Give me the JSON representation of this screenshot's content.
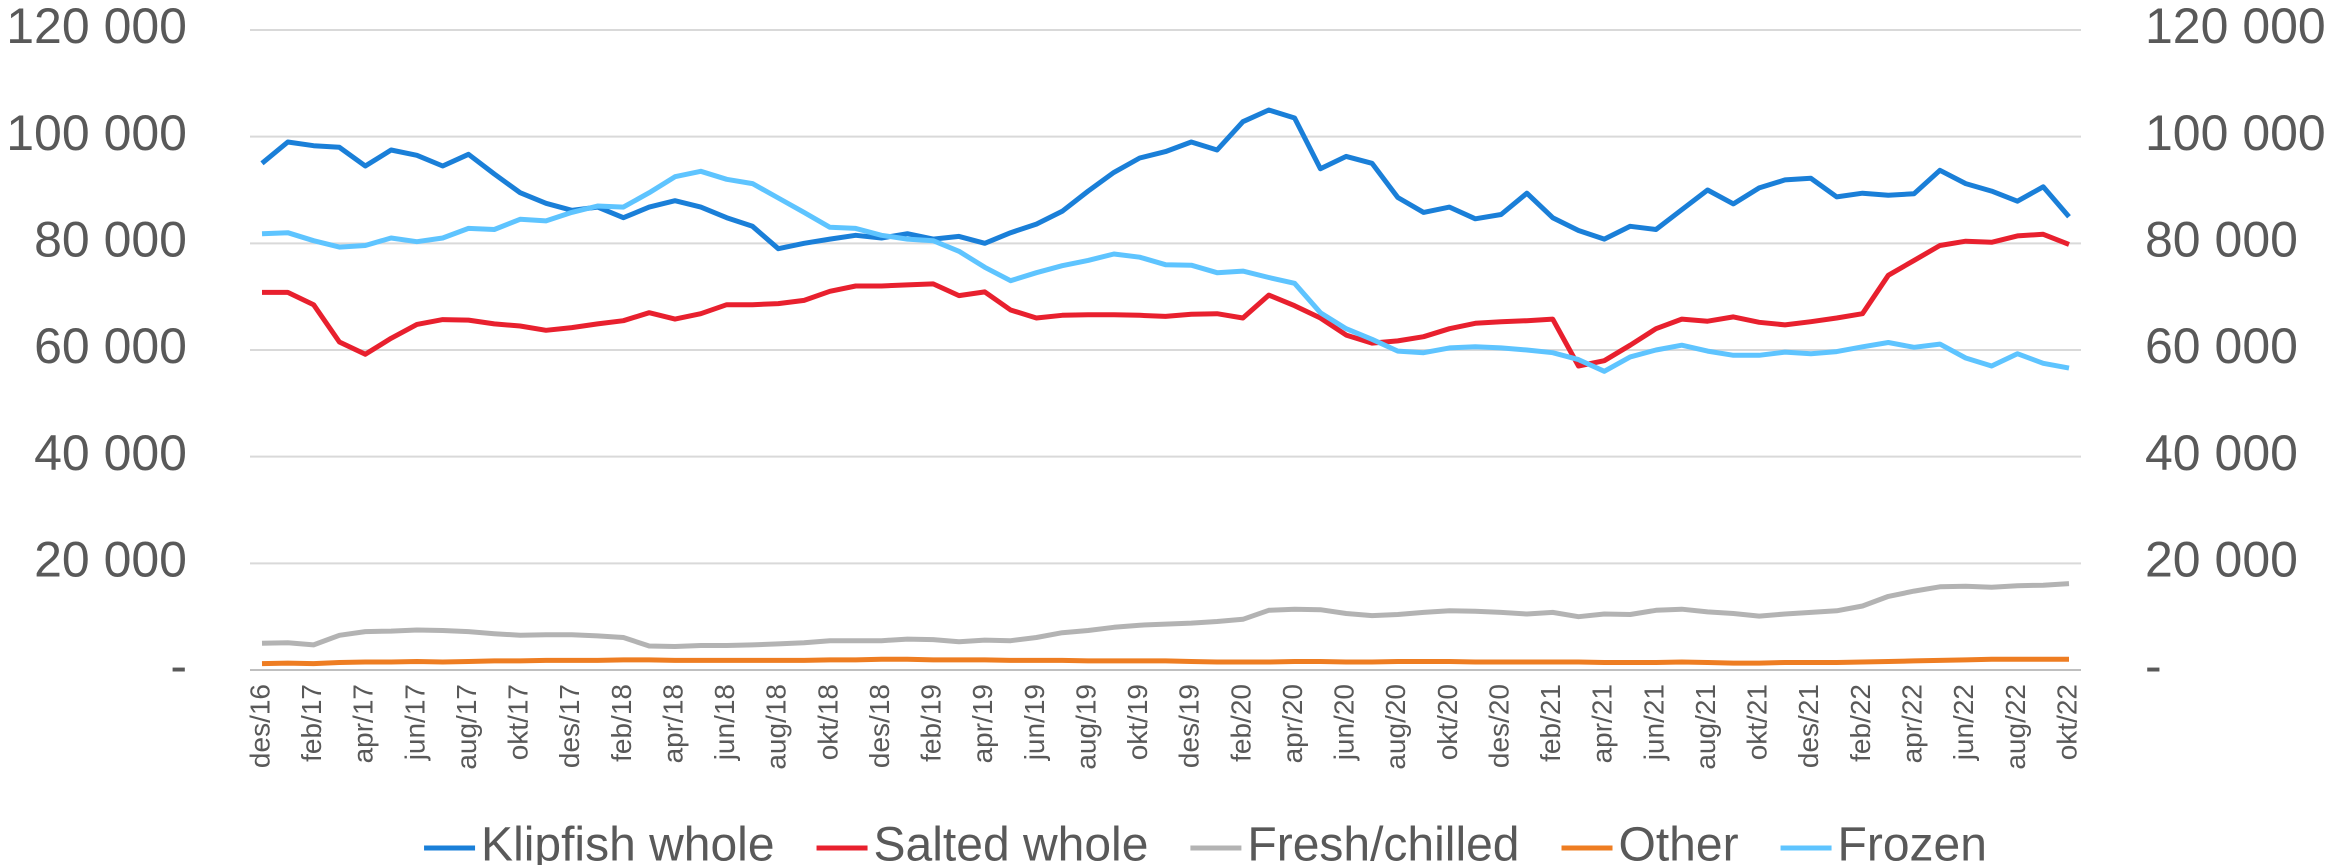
{
  "chart_data": {
    "type": "line",
    "categories": [
      "des/16",
      null,
      "feb/17",
      null,
      "apr/17",
      null,
      "jun/17",
      null,
      "aug/17",
      null,
      "okt/17",
      null,
      "des/17",
      null,
      "feb/18",
      null,
      "apr/18",
      null,
      "jun/18",
      null,
      "aug/18",
      null,
      "okt/18",
      null,
      "des/18",
      null,
      "feb/19",
      null,
      "apr/19",
      null,
      "jun/19",
      null,
      "aug/19",
      null,
      "okt/19",
      null,
      "des/19",
      null,
      "feb/20",
      null,
      "apr/20",
      null,
      "jun/20",
      null,
      "aug/20",
      null,
      "okt/20",
      null,
      "des/20",
      null,
      "feb/21",
      null,
      "apr/21",
      null,
      "jun/21",
      null,
      "aug/21",
      null,
      "okt/21",
      null,
      "des/21",
      null,
      "feb/22",
      null,
      "apr/22",
      null,
      "jun/22",
      null,
      "aug/22",
      null,
      "okt/22"
    ],
    "series": [
      {
        "name": "Klipfish whole",
        "color": "#1a7fd8",
        "values": [
          95000,
          99000,
          98300,
          98000,
          94500,
          97500,
          96500,
          94500,
          96700,
          93000,
          89500,
          87500,
          86200,
          86800,
          84800,
          86800,
          88000,
          86800,
          84800,
          83200,
          79000,
          80000,
          80800,
          81500,
          81000,
          81800,
          80800,
          81300,
          80000,
          82000,
          83600,
          86000,
          89800,
          93300,
          96000,
          97200,
          99000,
          97500,
          102800,
          105000,
          103500,
          94000,
          96300,
          95000,
          88600,
          85800,
          86800,
          84600,
          85400,
          89400,
          84800,
          82400,
          80800,
          83200,
          82600,
          86300,
          90000,
          87400,
          90400,
          91900,
          92200,
          88700,
          89400,
          89000,
          89300,
          93700,
          91200,
          89800,
          87900,
          90600,
          85000
        ]
      },
      {
        "name": "Salted whole",
        "color": "#e8202e",
        "values": [
          70800,
          70800,
          68500,
          61500,
          59200,
          62200,
          64800,
          65700,
          65600,
          64900,
          64500,
          63700,
          64200,
          64900,
          65500,
          67000,
          65800,
          66800,
          68500,
          68500,
          68700,
          69300,
          71000,
          72000,
          72000,
          72200,
          72400,
          70200,
          70900,
          67500,
          66000,
          66500,
          66600,
          66600,
          66500,
          66300,
          66700,
          66800,
          66000,
          70300,
          68300,
          66000,
          62800,
          61300,
          61700,
          62500,
          64000,
          65000,
          65300,
          65500,
          65800,
          57000,
          58000,
          60900,
          64000,
          65800,
          65400,
          66200,
          65200,
          64700,
          65300,
          66000,
          66800,
          74000,
          76800,
          79600,
          80400,
          80200,
          81400,
          81700,
          79800
        ]
      },
      {
        "name": "Fresh/chilled",
        "color": "#b3b3b3",
        "values": [
          5000,
          5100,
          4700,
          6500,
          7200,
          7300,
          7500,
          7400,
          7200,
          6800,
          6500,
          6600,
          6600,
          6400,
          6100,
          4500,
          4400,
          4600,
          4600,
          4700,
          4900,
          5100,
          5500,
          5500,
          5500,
          5800,
          5700,
          5300,
          5600,
          5500,
          6100,
          7000,
          7400,
          8000,
          8400,
          8600,
          8800,
          9100,
          9500,
          11200,
          11400,
          11300,
          10600,
          10200,
          10400,
          10800,
          11100,
          11000,
          10800,
          10500,
          10800,
          10000,
          10500,
          10400,
          11200,
          11400,
          10900,
          10600,
          10100,
          10500,
          10800,
          11100,
          12000,
          13800,
          14800,
          15600,
          15700,
          15500,
          15800,
          15900,
          16200
        ]
      },
      {
        "name": "Other",
        "color": "#ee7d22",
        "values": [
          1200,
          1300,
          1200,
          1400,
          1500,
          1500,
          1600,
          1500,
          1600,
          1700,
          1700,
          1800,
          1800,
          1800,
          1900,
          1900,
          1800,
          1800,
          1800,
          1800,
          1800,
          1800,
          1900,
          1900,
          2000,
          2000,
          1900,
          1900,
          1900,
          1800,
          1800,
          1800,
          1700,
          1700,
          1700,
          1700,
          1600,
          1500,
          1500,
          1500,
          1600,
          1600,
          1500,
          1500,
          1600,
          1600,
          1600,
          1500,
          1500,
          1500,
          1500,
          1500,
          1400,
          1400,
          1400,
          1500,
          1400,
          1300,
          1300,
          1400,
          1400,
          1400,
          1500,
          1600,
          1700,
          1800,
          1900,
          2000,
          2000,
          2000,
          2000
        ]
      },
      {
        "name": "Frozen",
        "color": "#5ec4ff",
        "values": [
          81800,
          82000,
          80500,
          79300,
          79600,
          81000,
          80300,
          81000,
          82800,
          82600,
          84500,
          84200,
          85800,
          87000,
          86800,
          89500,
          92500,
          93500,
          92000,
          91200,
          88500,
          85800,
          83000,
          82800,
          81500,
          80800,
          80500,
          78500,
          75500,
          73000,
          74500,
          75800,
          76800,
          78000,
          77400,
          76000,
          75900,
          74500,
          74800,
          73600,
          72500,
          67000,
          64000,
          62000,
          59800,
          59500,
          60400,
          60600,
          60400,
          60000,
          59500,
          58200,
          56000,
          58700,
          60000,
          60900,
          59800,
          59000,
          59000,
          59600,
          59300,
          59700,
          60600,
          61400,
          60500,
          61100,
          58500,
          57000,
          59300,
          57500,
          56600
        ]
      }
    ],
    "ylim": [
      0,
      120000
    ],
    "yticks": [
      {
        "value": 0,
        "label": "-"
      },
      {
        "value": 20000,
        "label": "20 000"
      },
      {
        "value": 40000,
        "label": "40 000"
      },
      {
        "value": 60000,
        "label": "60 000"
      },
      {
        "value": 80000,
        "label": "80 000"
      },
      {
        "value": 100000,
        "label": "100 000"
      },
      {
        "value": 120000,
        "label": "120 000"
      }
    ],
    "y2lim": [
      0,
      120000
    ],
    "y2ticks": [
      {
        "value": 0,
        "label": "-"
      },
      {
        "value": 20000,
        "label": "20 000"
      },
      {
        "value": 40000,
        "label": "40 000"
      },
      {
        "value": 60000,
        "label": "60 000"
      },
      {
        "value": 80000,
        "label": "80 000"
      },
      {
        "value": 100000,
        "label": "100 000"
      },
      {
        "value": 120000,
        "label": "120 000"
      }
    ],
    "grid": true,
    "legend": "bottom"
  }
}
